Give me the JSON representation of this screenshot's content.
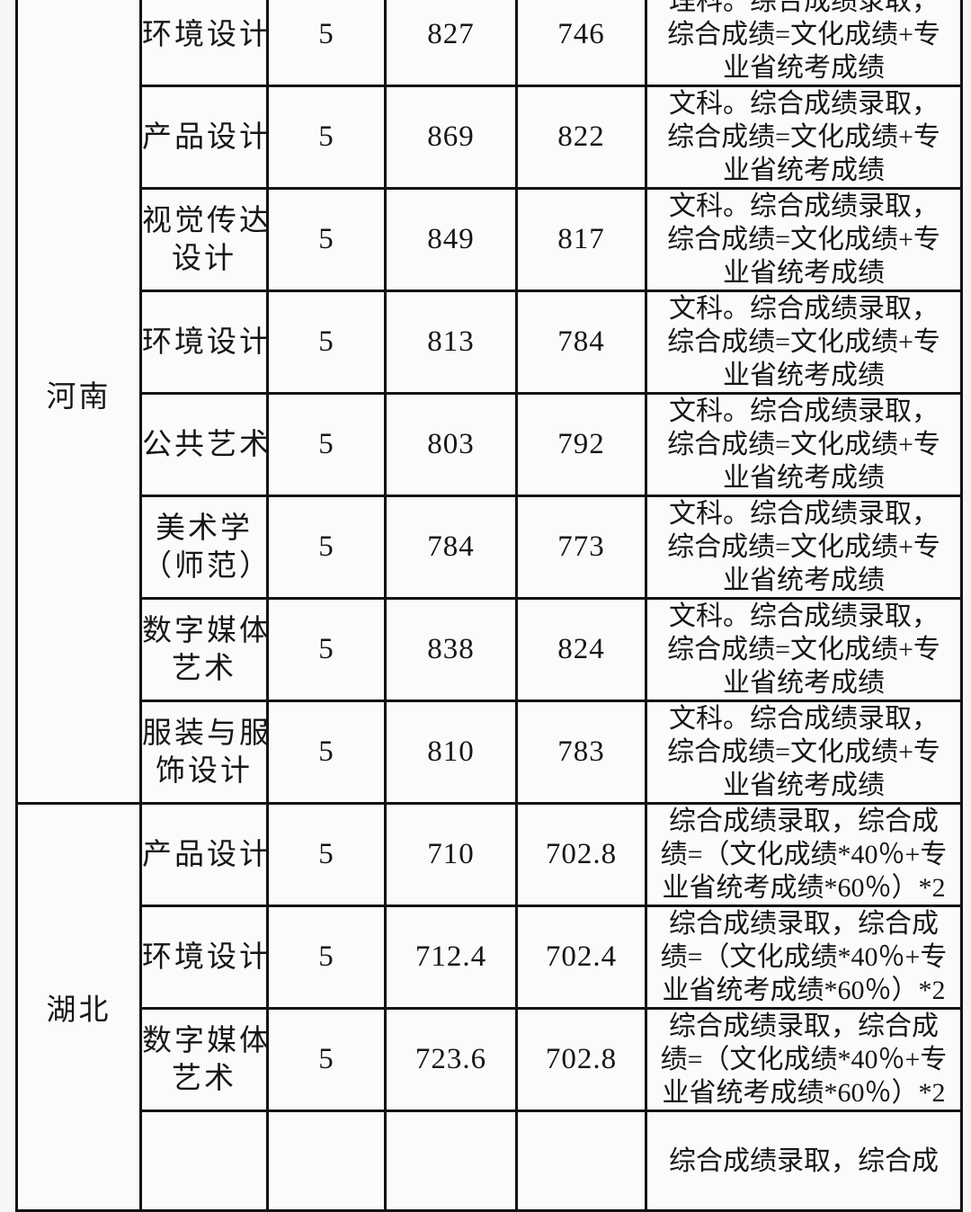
{
  "document": {
    "kind": "scanned-admission-score-table",
    "paper_color": "#f6f6f4",
    "cell_color": "#fbfbf9",
    "border_color": "#131313",
    "text_color": "#161616"
  },
  "table": {
    "sections": [
      {
        "province": "河南",
        "rows": [
          {
            "major_lines": [
              "环境设计"
            ],
            "count": "5",
            "high": "827",
            "low": "746",
            "remark_lines": [
              "理科。综合成绩录取，",
              "综合成绩=文化成绩+专",
              "业省统考成绩"
            ]
          },
          {
            "major_lines": [
              "产品设计"
            ],
            "count": "5",
            "high": "869",
            "low": "822",
            "remark_lines": [
              "文科。综合成绩录取，",
              "综合成绩=文化成绩+专",
              "业省统考成绩"
            ]
          },
          {
            "major_lines": [
              "视觉传达",
              "设计"
            ],
            "count": "5",
            "high": "849",
            "low": "817",
            "remark_lines": [
              "文科。综合成绩录取，",
              "综合成绩=文化成绩+专",
              "业省统考成绩"
            ]
          },
          {
            "major_lines": [
              "环境设计"
            ],
            "count": "5",
            "high": "813",
            "low": "784",
            "remark_lines": [
              "文科。综合成绩录取，",
              "综合成绩=文化成绩+专",
              "业省统考成绩"
            ]
          },
          {
            "major_lines": [
              "公共艺术"
            ],
            "count": "5",
            "high": "803",
            "low": "792",
            "remark_lines": [
              "文科。综合成绩录取，",
              "综合成绩=文化成绩+专",
              "业省统考成绩"
            ]
          },
          {
            "major_lines": [
              "美术学",
              "（师范）"
            ],
            "count": "5",
            "high": "784",
            "low": "773",
            "remark_lines": [
              "文科。综合成绩录取，",
              "综合成绩=文化成绩+专",
              "业省统考成绩"
            ]
          },
          {
            "major_lines": [
              "数字媒体",
              "艺术"
            ],
            "count": "5",
            "high": "838",
            "low": "824",
            "remark_lines": [
              "文科。综合成绩录取，",
              "综合成绩=文化成绩+专",
              "业省统考成绩"
            ]
          },
          {
            "major_lines": [
              "服装与服",
              "饰设计"
            ],
            "count": "5",
            "high": "810",
            "low": "783",
            "remark_lines": [
              "文科。综合成绩录取，",
              "综合成绩=文化成绩+专",
              "业省统考成绩"
            ]
          }
        ]
      },
      {
        "province": "湖北",
        "rows": [
          {
            "major_lines": [
              "产品设计"
            ],
            "count": "5",
            "high": "710",
            "low": "702.8",
            "remark_lines": [
              "综合成绩录取，综合成",
              "绩=（文化成绩*40％+专",
              "业省统考成绩*60％）*2"
            ]
          },
          {
            "major_lines": [
              "环境设计"
            ],
            "count": "5",
            "high": "712.4",
            "low": "702.4",
            "remark_lines": [
              "综合成绩录取，综合成",
              "绩=（文化成绩*40％+专",
              "业省统考成绩*60％）*2"
            ]
          },
          {
            "major_lines": [
              "数字媒体",
              "艺术"
            ],
            "count": "5",
            "high": "723.6",
            "low": "702.8",
            "remark_lines": [
              "综合成绩录取，综合成",
              "绩=（文化成绩*40％+专",
              "业省统考成绩*60％）*2"
            ]
          },
          {
            "major_lines": [
              ""
            ],
            "count": "",
            "high": "",
            "low": "",
            "remark_lines": [
              "综合成绩录取，综合成"
            ]
          }
        ]
      }
    ]
  }
}
